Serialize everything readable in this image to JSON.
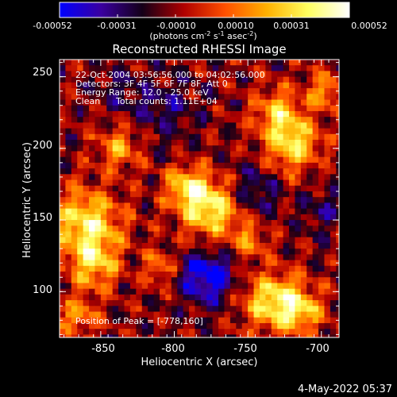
{
  "colorbar": {
    "ticks": [
      "-0.00052",
      "-0.00031",
      "-0.00010",
      "0.00010",
      "0.00031",
      "0.00052"
    ],
    "units_main": "(photons cm",
    "units_exp1": "-2",
    "units_mid": " s",
    "units_exp2": "-1",
    "units_end": " asec",
    "units_exp3": "-2",
    "units_close": ")",
    "range": [
      -0.00052,
      0.00052
    ],
    "stops": [
      "#0000ff",
      "#3a00a0",
      "#140018",
      "#b00000",
      "#ff5000",
      "#ffb000",
      "#ffff60",
      "#ffffff"
    ]
  },
  "annotations": {
    "time_range": "22-Oct-2004 03:56:56.000 to 04:02:56.000",
    "detectors": "Detectors: 3F 4F 5F 6F 7F 8F, Att 0",
    "energy": "Energy Range: 12.0 - 25.0 keV",
    "method": "Clean",
    "counts": "Total counts: 1.11E+04",
    "peak": "Position of Peak = [-778,160]"
  },
  "footer": {
    "date": "4-May-2022 05:37"
  },
  "chart_data": {
    "type": "heatmap",
    "title": "Reconstructed RHESSI Image",
    "xlabel": "Heliocentric X (arcsec)",
    "ylabel": "Heliocentric Y (arcsec)",
    "xlim": [
      -878,
      -688
    ],
    "ylim": [
      68,
      262
    ],
    "x_ticks": [
      -850,
      -800,
      -750,
      -700
    ],
    "y_ticks": [
      100,
      150,
      200,
      250
    ],
    "value_range": [
      -0.00052,
      0.00052
    ],
    "peak": [
      -778,
      160
    ],
    "sources": [
      {
        "x": -778,
        "y": 160,
        "amplitude": 0.00052,
        "width": 14
      },
      {
        "x": -794,
        "y": 176,
        "amplitude": 0.00036,
        "width": 10
      },
      {
        "x": -862,
        "y": 148,
        "amplitude": 0.00048,
        "width": 17
      },
      {
        "x": -856,
        "y": 120,
        "amplitude": 0.00034,
        "width": 11
      },
      {
        "x": -840,
        "y": 202,
        "amplitude": 0.0003,
        "width": 10
      },
      {
        "x": -868,
        "y": 85,
        "amplitude": 0.00028,
        "width": 10
      },
      {
        "x": -722,
        "y": 205,
        "amplitude": 0.00045,
        "width": 13
      },
      {
        "x": -732,
        "y": 228,
        "amplitude": 0.00034,
        "width": 11
      },
      {
        "x": -700,
        "y": 242,
        "amplitude": 0.0003,
        "width": 9
      },
      {
        "x": -736,
        "y": 96,
        "amplitude": 0.00044,
        "width": 14
      },
      {
        "x": -716,
        "y": 88,
        "amplitude": 0.00038,
        "width": 11
      },
      {
        "x": -752,
        "y": 138,
        "amplitude": 0.00024,
        "width": 9
      },
      {
        "x": -812,
        "y": 118,
        "amplitude": 0.00022,
        "width": 9
      },
      {
        "x": -780,
        "y": 112,
        "amplitude": -0.00044,
        "width": 13
      },
      {
        "x": -808,
        "y": 230,
        "amplitude": -0.00018,
        "width": 15
      },
      {
        "x": -748,
        "y": 172,
        "amplitude": -0.00022,
        "width": 12
      },
      {
        "x": -842,
        "y": 245,
        "amplitude": -0.00012,
        "width": 11
      },
      {
        "x": -700,
        "y": 160,
        "amplitude": -0.00016,
        "width": 11
      }
    ]
  }
}
